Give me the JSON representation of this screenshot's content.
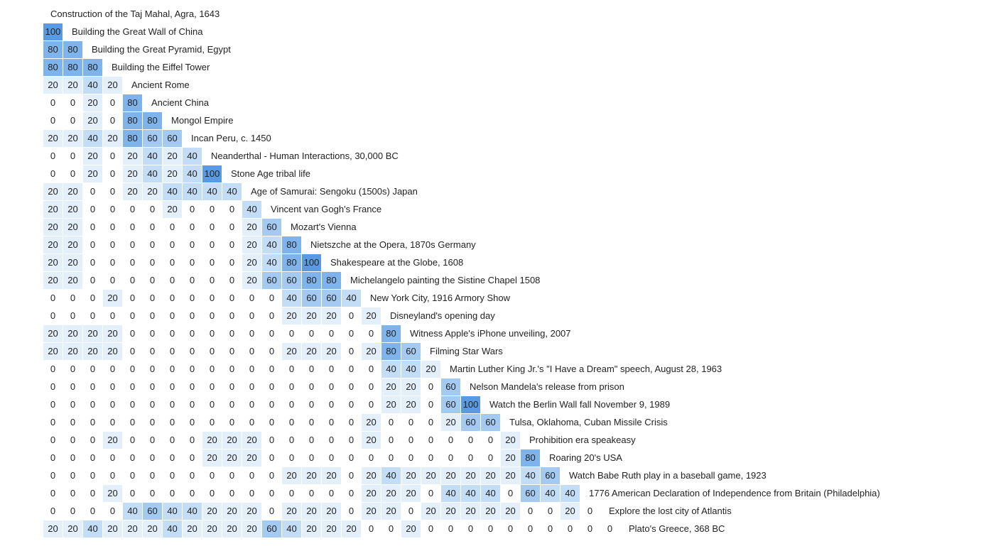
{
  "chart_data": {
    "type": "heatmap",
    "top_label": "Construction of the Taj Mahal, Agra, 1643",
    "rows": [
      {
        "label": "Building the Great Wall of China",
        "values": [
          100
        ]
      },
      {
        "label": "Building the Great Pyramid, Egypt",
        "values": [
          80,
          80
        ]
      },
      {
        "label": "Building the Eiffel Tower",
        "values": [
          80,
          80,
          80
        ]
      },
      {
        "label": "Ancient Rome",
        "values": [
          20,
          20,
          40,
          20
        ]
      },
      {
        "label": "Ancient China",
        "values": [
          0,
          0,
          20,
          0,
          80
        ]
      },
      {
        "label": "Mongol Empire",
        "values": [
          0,
          0,
          20,
          0,
          80,
          80
        ]
      },
      {
        "label": "Incan Peru, c. 1450",
        "values": [
          20,
          20,
          40,
          20,
          80,
          60,
          60
        ]
      },
      {
        "label": "Neanderthal - Human Interactions, 30,000 BC",
        "values": [
          0,
          0,
          20,
          0,
          20,
          40,
          20,
          40
        ]
      },
      {
        "label": "Stone Age tribal life",
        "values": [
          0,
          0,
          20,
          0,
          20,
          40,
          20,
          40,
          100
        ]
      },
      {
        "label": "Age of Samurai: Sengoku (1500s) Japan",
        "values": [
          20,
          20,
          0,
          0,
          20,
          20,
          40,
          40,
          40,
          40
        ]
      },
      {
        "label": "Vincent van Gogh's France",
        "values": [
          20,
          20,
          0,
          0,
          0,
          0,
          20,
          0,
          0,
          0,
          40
        ]
      },
      {
        "label": "Mozart's Vienna",
        "values": [
          20,
          20,
          0,
          0,
          0,
          0,
          0,
          0,
          0,
          0,
          20,
          60
        ]
      },
      {
        "label": "Nietszche at the Opera, 1870s Germany",
        "values": [
          20,
          20,
          0,
          0,
          0,
          0,
          0,
          0,
          0,
          0,
          20,
          40,
          80
        ]
      },
      {
        "label": "Shakespeare at the Globe, 1608",
        "values": [
          20,
          20,
          0,
          0,
          0,
          0,
          0,
          0,
          0,
          0,
          20,
          40,
          80,
          100
        ]
      },
      {
        "label": "Michelangelo painting the Sistine Chapel 1508",
        "values": [
          20,
          20,
          0,
          0,
          0,
          0,
          0,
          0,
          0,
          0,
          20,
          60,
          60,
          80,
          80
        ]
      },
      {
        "label": "New York City, 1916 Armory Show",
        "values": [
          0,
          0,
          0,
          20,
          0,
          0,
          0,
          0,
          0,
          0,
          0,
          0,
          40,
          60,
          60,
          40
        ]
      },
      {
        "label": "Disneyland's opening day",
        "values": [
          0,
          0,
          0,
          0,
          0,
          0,
          0,
          0,
          0,
          0,
          0,
          0,
          20,
          20,
          20,
          0,
          20
        ]
      },
      {
        "label": "Witness Apple's iPhone unveiling, 2007",
        "values": [
          20,
          20,
          20,
          20,
          0,
          0,
          0,
          0,
          0,
          0,
          0,
          0,
          0,
          0,
          0,
          0,
          0,
          80
        ]
      },
      {
        "label": "Filming Star Wars",
        "values": [
          20,
          20,
          20,
          20,
          0,
          0,
          0,
          0,
          0,
          0,
          0,
          0,
          20,
          20,
          20,
          0,
          20,
          80,
          60
        ]
      },
      {
        "label": "Martin Luther King Jr.'s \"I Have a Dream\" speech, August 28, 1963",
        "values": [
          0,
          0,
          0,
          0,
          0,
          0,
          0,
          0,
          0,
          0,
          0,
          0,
          0,
          0,
          0,
          0,
          0,
          40,
          40,
          20
        ]
      },
      {
        "label": "Nelson Mandela's release from prison",
        "values": [
          0,
          0,
          0,
          0,
          0,
          0,
          0,
          0,
          0,
          0,
          0,
          0,
          0,
          0,
          0,
          0,
          0,
          20,
          20,
          0,
          60
        ]
      },
      {
        "label": "Watch the Berlin Wall fall November 9, 1989",
        "values": [
          0,
          0,
          0,
          0,
          0,
          0,
          0,
          0,
          0,
          0,
          0,
          0,
          0,
          0,
          0,
          0,
          0,
          20,
          20,
          0,
          60,
          100
        ]
      },
      {
        "label": "Tulsa, Oklahoma, Cuban Missile Crisis",
        "values": [
          0,
          0,
          0,
          0,
          0,
          0,
          0,
          0,
          0,
          0,
          0,
          0,
          0,
          0,
          0,
          0,
          20,
          0,
          0,
          0,
          20,
          60,
          60
        ]
      },
      {
        "label": "Prohibition era speakeasy",
        "values": [
          0,
          0,
          0,
          20,
          0,
          0,
          0,
          0,
          20,
          20,
          20,
          0,
          0,
          0,
          0,
          0,
          20,
          0,
          0,
          0,
          0,
          0,
          0,
          20
        ]
      },
      {
        "label": "Roaring 20's USA",
        "values": [
          0,
          0,
          0,
          0,
          0,
          0,
          0,
          0,
          20,
          20,
          20,
          0,
          0,
          0,
          0,
          0,
          0,
          0,
          0,
          0,
          0,
          0,
          0,
          20,
          80
        ]
      },
      {
        "label": "Watch Babe Ruth play in a baseball game, 1923",
        "values": [
          0,
          0,
          0,
          0,
          0,
          0,
          0,
          0,
          0,
          0,
          0,
          0,
          20,
          20,
          20,
          0,
          20,
          40,
          20,
          20,
          20,
          20,
          20,
          20,
          40,
          60
        ]
      },
      {
        "label": "1776 American Declaration of Independence from Britain (Philadelphia)",
        "values": [
          0,
          0,
          0,
          20,
          0,
          0,
          0,
          0,
          0,
          0,
          0,
          0,
          0,
          0,
          0,
          0,
          20,
          20,
          20,
          0,
          40,
          40,
          40,
          0,
          60,
          40,
          40
        ]
      },
      {
        "label": "Explore the lost city of Atlantis",
        "values": [
          0,
          0,
          0,
          0,
          40,
          60,
          40,
          40,
          20,
          20,
          20,
          0,
          20,
          20,
          20,
          0,
          20,
          20,
          0,
          20,
          20,
          20,
          20,
          20,
          0,
          0,
          20,
          0
        ]
      },
      {
        "label": "Plato's Greece, 368 BC",
        "values": [
          20,
          20,
          40,
          20,
          20,
          20,
          40,
          20,
          20,
          20,
          20,
          60,
          40,
          20,
          20,
          20,
          0,
          0,
          20,
          0,
          0,
          0,
          0,
          0,
          0,
          0,
          0,
          0,
          0
        ]
      }
    ],
    "value_range": [
      0,
      100
    ],
    "colors": {
      "0": "#ffffff",
      "20": "#e3effb",
      "40": "#c4ddf6",
      "60": "#a4caf1",
      "80": "#7fb3eb",
      "100": "#5a9ae2"
    }
  }
}
